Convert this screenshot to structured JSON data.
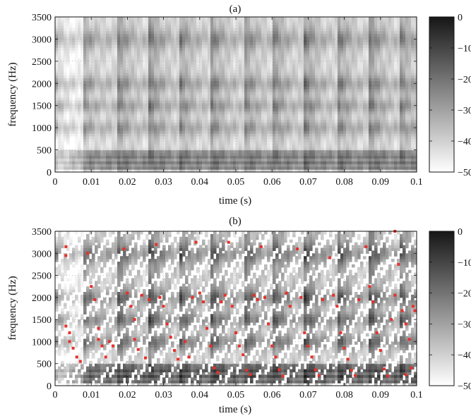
{
  "chart_data": [
    {
      "type": "heatmap",
      "title": "(a)",
      "xlabel": "time (s)",
      "ylabel": "frequency (Hz)",
      "xlim": [
        0,
        0.1
      ],
      "ylim": [
        0,
        3500
      ],
      "xticks": [
        0,
        0.01,
        0.02,
        0.03,
        0.04,
        0.05,
        0.06,
        0.07,
        0.08,
        0.09,
        0.1
      ],
      "xtick_labels": [
        "0",
        "0.01",
        "0.02",
        "0.03",
        "0.04",
        "0.05",
        "0.06",
        "0.07",
        "0.08",
        "0.09",
        "0.1"
      ],
      "yticks": [
        0,
        500,
        1000,
        1500,
        2000,
        2500,
        3000,
        3500
      ],
      "ytick_labels": [
        "0",
        "500",
        "1000",
        "1500",
        "2000",
        "2500",
        "3000",
        "3500"
      ],
      "colorbar": {
        "range": [
          -50,
          0
        ],
        "ticks": [
          0,
          -10,
          -20,
          -30,
          -40,
          -50
        ],
        "tick_labels": [
          "0",
          "−10",
          "−20",
          "−30",
          "−40",
          "−50"
        ]
      },
      "colormap": "gray (white = −50, black = 0)",
      "pulse_onsets_s": [
        0.0,
        0.008,
        0.017,
        0.026,
        0.034,
        0.043,
        0.052,
        0.06,
        0.069,
        0.078,
        0.087,
        0.095
      ],
      "harmonics_hz": [
        110,
        220,
        330,
        440
      ],
      "formant_bands_hz": [
        1000,
        1500,
        2000,
        3000
      ],
      "grid": true
    },
    {
      "type": "heatmap",
      "title": "(b)",
      "xlabel": "time (s)",
      "ylabel": "frequency (Hz)",
      "xlim": [
        0,
        0.1
      ],
      "ylim": [
        0,
        3500
      ],
      "xticks": [
        0,
        0.01,
        0.02,
        0.03,
        0.04,
        0.05,
        0.06,
        0.07,
        0.08,
        0.09,
        0.1
      ],
      "xtick_labels": [
        "0",
        "0.01",
        "0.02",
        "0.03",
        "0.04",
        "0.05",
        "0.06",
        "0.07",
        "0.08",
        "0.09",
        "0.1"
      ],
      "yticks": [
        0,
        500,
        1000,
        1500,
        2000,
        2500,
        3000,
        3500
      ],
      "ytick_labels": [
        "0",
        "500",
        "1000",
        "1500",
        "2000",
        "2500",
        "3000",
        "3500"
      ],
      "colorbar": {
        "range": [
          -50,
          0
        ],
        "ticks": [
          0,
          -10,
          -20,
          -30,
          -40,
          -50
        ],
        "tick_labels": [
          "0",
          "−10",
          "−20",
          "−30",
          "−40",
          "−50"
        ]
      },
      "colormap": "gray (white = −50, black = 0)",
      "pulse_onsets_s": [
        0.0,
        0.008,
        0.017,
        0.026,
        0.034,
        0.043,
        0.052,
        0.06,
        0.069,
        0.078,
        0.087,
        0.095
      ],
      "harmonics_hz": [
        110,
        220,
        330,
        440
      ],
      "formant_bands_hz": [
        1000,
        1500,
        2000,
        3000
      ],
      "marker_color": "#e8302a",
      "markers": [
        [
          0.003,
          3150
        ],
        [
          0.003,
          2950
        ],
        [
          0.003,
          1350
        ],
        [
          0.004,
          1200
        ],
        [
          0.004,
          1000
        ],
        [
          0.005,
          850
        ],
        [
          0.006,
          650
        ],
        [
          0.007,
          550
        ],
        [
          0.009,
          3000
        ],
        [
          0.01,
          2250
        ],
        [
          0.011,
          1950
        ],
        [
          0.012,
          1300
        ],
        [
          0.012,
          1050
        ],
        [
          0.013,
          900
        ],
        [
          0.014,
          650
        ],
        [
          0.015,
          1000
        ],
        [
          0.016,
          900
        ],
        [
          0.019,
          3100
        ],
        [
          0.02,
          2100
        ],
        [
          0.021,
          1800
        ],
        [
          0.022,
          1500
        ],
        [
          0.022,
          1050
        ],
        [
          0.023,
          820
        ],
        [
          0.025,
          630
        ],
        [
          0.026,
          1950
        ],
        [
          0.024,
          2050
        ],
        [
          0.028,
          3200
        ],
        [
          0.029,
          2000
        ],
        [
          0.03,
          1800
        ],
        [
          0.031,
          1400
        ],
        [
          0.032,
          1100
        ],
        [
          0.033,
          800
        ],
        [
          0.034,
          600
        ],
        [
          0.036,
          1000
        ],
        [
          0.038,
          2000
        ],
        [
          0.037,
          650
        ],
        [
          0.039,
          3250
        ],
        [
          0.04,
          2100
        ],
        [
          0.041,
          1900
        ],
        [
          0.042,
          1300
        ],
        [
          0.043,
          900
        ],
        [
          0.044,
          400
        ],
        [
          0.045,
          300
        ],
        [
          0.046,
          1900
        ],
        [
          0.047,
          2050
        ],
        [
          0.048,
          3250
        ],
        [
          0.049,
          1800
        ],
        [
          0.05,
          1200
        ],
        [
          0.051,
          900
        ],
        [
          0.052,
          700
        ],
        [
          0.053,
          350
        ],
        [
          0.054,
          250
        ],
        [
          0.055,
          2050
        ],
        [
          0.056,
          1950
        ],
        [
          0.057,
          3150
        ],
        [
          0.058,
          2000
        ],
        [
          0.059,
          1400
        ],
        [
          0.06,
          900
        ],
        [
          0.061,
          650
        ],
        [
          0.062,
          360
        ],
        [
          0.063,
          220
        ],
        [
          0.064,
          2100
        ],
        [
          0.065,
          1800
        ],
        [
          0.067,
          3100
        ],
        [
          0.068,
          2000
        ],
        [
          0.069,
          1200
        ],
        [
          0.07,
          900
        ],
        [
          0.071,
          650
        ],
        [
          0.072,
          360
        ],
        [
          0.073,
          230
        ],
        [
          0.074,
          1950
        ],
        [
          0.076,
          2900
        ],
        [
          0.077,
          2050
        ],
        [
          0.078,
          1800
        ],
        [
          0.079,
          1200
        ],
        [
          0.08,
          850
        ],
        [
          0.081,
          600
        ],
        [
          0.082,
          350
        ],
        [
          0.083,
          230
        ],
        [
          0.084,
          1950
        ],
        [
          0.086,
          3150
        ],
        [
          0.087,
          2250
        ],
        [
          0.088,
          1900
        ],
        [
          0.089,
          1200
        ],
        [
          0.09,
          800
        ],
        [
          0.091,
          380
        ],
        [
          0.092,
          220
        ],
        [
          0.093,
          1500
        ],
        [
          0.094,
          2050
        ],
        [
          0.095,
          2750
        ],
        [
          0.096,
          1700
        ],
        [
          0.097,
          1400
        ],
        [
          0.098,
          1050
        ],
        [
          0.099,
          1800
        ],
        [
          0.0995,
          1700
        ],
        [
          0.0985,
          400
        ],
        [
          0.097,
          250
        ],
        [
          0.094,
          3500
        ]
      ],
      "grid": true
    }
  ]
}
